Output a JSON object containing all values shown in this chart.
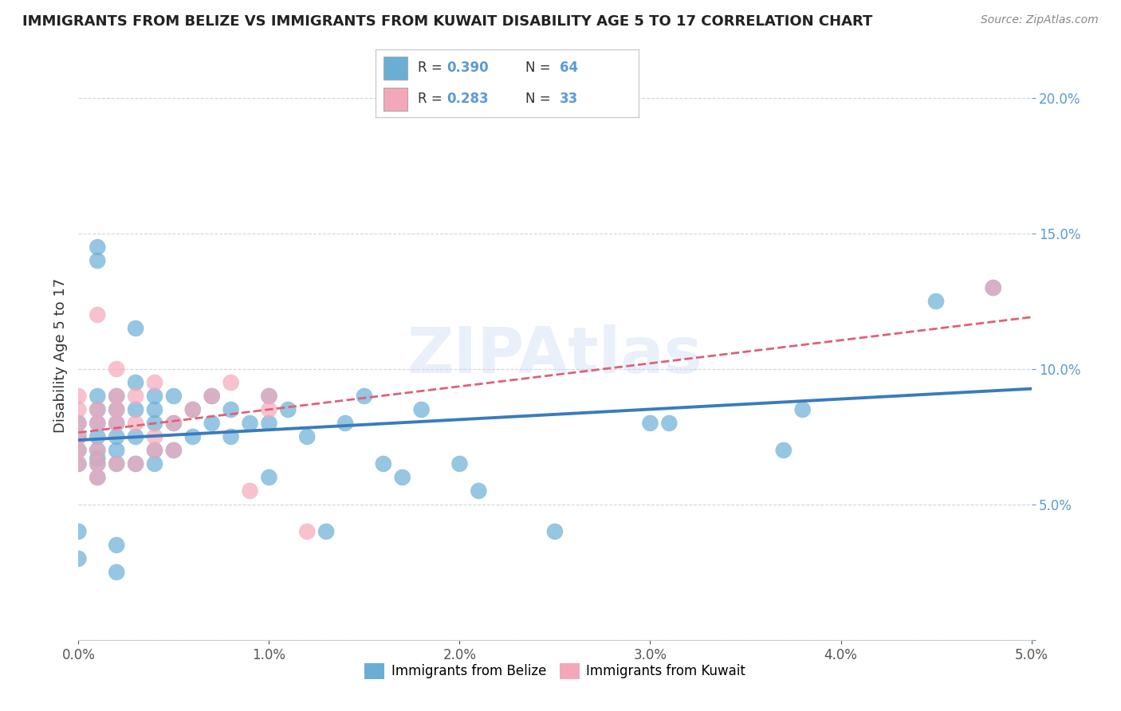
{
  "title": "IMMIGRANTS FROM BELIZE VS IMMIGRANTS FROM KUWAIT DISABILITY AGE 5 TO 17 CORRELATION CHART",
  "source": "Source: ZipAtlas.com",
  "ylabel": "Disability Age 5 to 17",
  "xlim": [
    0.0,
    0.05
  ],
  "ylim": [
    0.0,
    0.21
  ],
  "belize_color": "#6aaed6",
  "belize_line_color": "#3a7bbf",
  "kuwait_color": "#f4a7b9",
  "kuwait_line_color": "#e0607a",
  "belize_R": 0.39,
  "belize_N": 64,
  "kuwait_R": 0.283,
  "kuwait_N": 33,
  "legend_label_belize": "Immigrants from Belize",
  "legend_label_kuwait": "Immigrants from Kuwait",
  "watermark": "ZIPAtlas",
  "belize_x": [
    0.0,
    0.0,
    0.0,
    0.0,
    0.0,
    0.0,
    0.001,
    0.001,
    0.001,
    0.001,
    0.001,
    0.001,
    0.001,
    0.001,
    0.001,
    0.001,
    0.002,
    0.002,
    0.002,
    0.002,
    0.002,
    0.002,
    0.002,
    0.002,
    0.003,
    0.003,
    0.003,
    0.003,
    0.003,
    0.004,
    0.004,
    0.004,
    0.004,
    0.004,
    0.005,
    0.005,
    0.005,
    0.006,
    0.006,
    0.007,
    0.007,
    0.008,
    0.008,
    0.009,
    0.01,
    0.01,
    0.01,
    0.011,
    0.012,
    0.013,
    0.014,
    0.015,
    0.016,
    0.017,
    0.018,
    0.02,
    0.021,
    0.025,
    0.03,
    0.031,
    0.037,
    0.038,
    0.045,
    0.048
  ],
  "belize_y": [
    0.07,
    0.075,
    0.08,
    0.065,
    0.04,
    0.03,
    0.065,
    0.067,
    0.07,
    0.075,
    0.08,
    0.085,
    0.09,
    0.14,
    0.145,
    0.06,
    0.065,
    0.07,
    0.075,
    0.08,
    0.085,
    0.09,
    0.035,
    0.025,
    0.065,
    0.075,
    0.085,
    0.095,
    0.115,
    0.065,
    0.07,
    0.08,
    0.085,
    0.09,
    0.07,
    0.08,
    0.09,
    0.075,
    0.085,
    0.08,
    0.09,
    0.075,
    0.085,
    0.08,
    0.06,
    0.08,
    0.09,
    0.085,
    0.075,
    0.04,
    0.08,
    0.09,
    0.065,
    0.06,
    0.085,
    0.065,
    0.055,
    0.04,
    0.08,
    0.08,
    0.07,
    0.085,
    0.125,
    0.13
  ],
  "kuwait_x": [
    0.0,
    0.0,
    0.0,
    0.0,
    0.0,
    0.0,
    0.001,
    0.001,
    0.001,
    0.001,
    0.001,
    0.001,
    0.002,
    0.002,
    0.002,
    0.002,
    0.002,
    0.003,
    0.003,
    0.003,
    0.004,
    0.004,
    0.004,
    0.005,
    0.005,
    0.006,
    0.007,
    0.008,
    0.009,
    0.01,
    0.01,
    0.012,
    0.048
  ],
  "kuwait_y": [
    0.065,
    0.07,
    0.075,
    0.08,
    0.085,
    0.09,
    0.06,
    0.065,
    0.07,
    0.08,
    0.085,
    0.12,
    0.065,
    0.08,
    0.085,
    0.09,
    0.1,
    0.065,
    0.08,
    0.09,
    0.07,
    0.075,
    0.095,
    0.07,
    0.08,
    0.085,
    0.09,
    0.095,
    0.055,
    0.085,
    0.09,
    0.04,
    0.13
  ]
}
